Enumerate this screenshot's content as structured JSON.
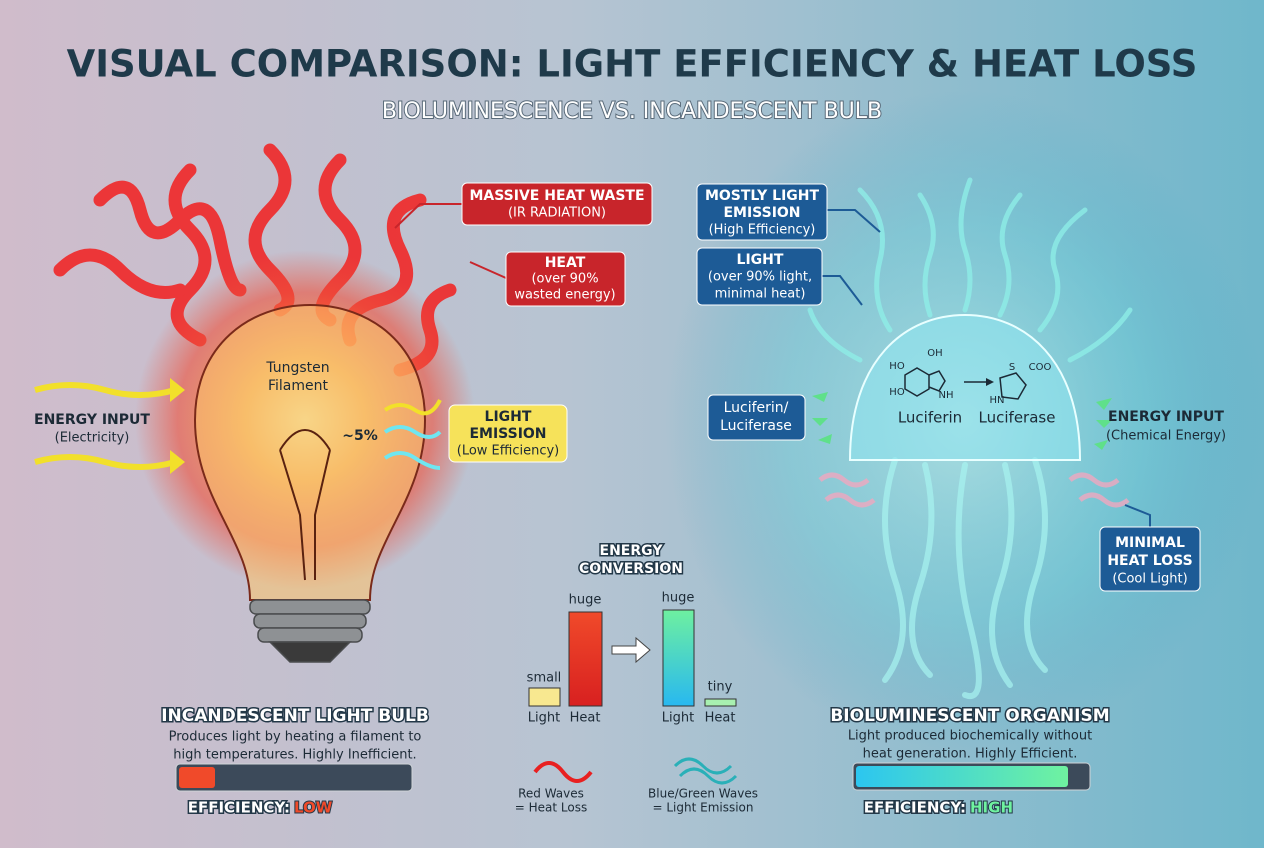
{
  "header": {
    "title": "VISUAL COMPARISON: LIGHT EFFICIENCY & HEAT LOSS",
    "subtitle": "BIOLUMINESCENCE VS. INCANDESCENT BULB"
  },
  "bulb": {
    "massive_heat_waste": [
      "MASSIVE HEAT WASTE",
      "(IR RADIATION)"
    ],
    "heat": [
      "HEAT",
      "(over 90%",
      "wasted energy)"
    ],
    "filament": [
      "Tungsten",
      "Filament"
    ],
    "energy_input": [
      "ENERGY INPUT",
      "(Electricity)"
    ],
    "percent": "~5%",
    "light_emission": [
      "LIGHT",
      "EMISSION",
      "(Low Efficiency)"
    ],
    "name": "INCANDESCENT LIGHT BULB",
    "description": [
      "Produces light by heating a filament to",
      "high temperatures. Highly Inefficient."
    ],
    "efficiency_label": "EFFICIENCY:",
    "efficiency_value": "LOW"
  },
  "organism": {
    "mostly_light": [
      "MOSTLY LIGHT",
      "EMISSION",
      "(High Efficiency)"
    ],
    "light": [
      "LIGHT",
      "(over 90% light,",
      "minimal heat)"
    ],
    "luciferin_luciferase": [
      "Luciferin/",
      "Luciferase"
    ],
    "atoms": [
      "HO",
      "OH",
      "HO",
      "NH",
      "S",
      "COO",
      "HN"
    ],
    "luciferin": "Luciferin",
    "luciferase": "Luciferase",
    "energy_input": [
      "ENERGY INPUT",
      "(Chemical Energy)"
    ],
    "minimal_heat_loss": [
      "MINIMAL",
      "HEAT LOSS",
      "(Cool Light)"
    ],
    "name": "BIOLUMINESCENT ORGANISM",
    "description": [
      "Light produced biochemically without",
      "heat generation. Highly Efficient."
    ],
    "efficiency_label": "EFFICIENCY:",
    "efficiency_value": "HIGH"
  },
  "conversion": {
    "title": [
      "ENERGY",
      "CONVERSION"
    ],
    "left": {
      "light_size": "small",
      "heat_size": "huge",
      "light": "Light",
      "heat": "Heat"
    },
    "right": {
      "light_size": "huge",
      "heat_size": "tiny",
      "light": "Light",
      "heat": "Heat"
    }
  },
  "legend": {
    "red": [
      "Red Waves",
      "= Heat Loss"
    ],
    "blue": [
      "Blue/Green Waves",
      "= Light Emission"
    ]
  }
}
